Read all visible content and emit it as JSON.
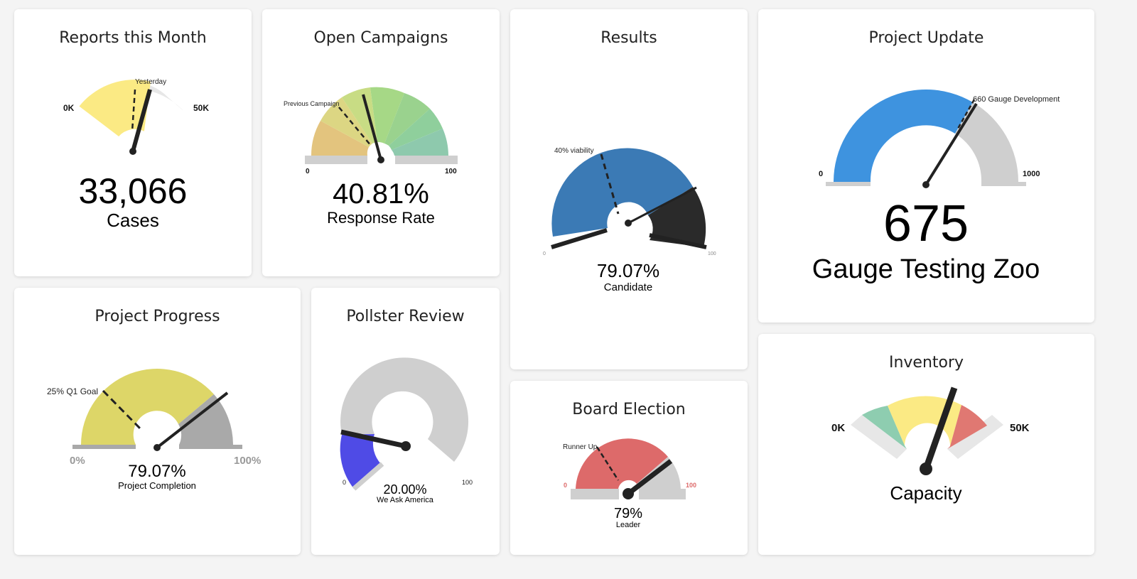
{
  "colors": {
    "yellow_soft": "#fbea84",
    "track_gray": "#e7e7e7",
    "needle": "#222222",
    "blue_fill": "#3e93df",
    "steel_blue": "#3b7ab5",
    "olive_yellow": "#ddd668",
    "gray_mid": "#a9a9a9",
    "violet_blue": "#4f4be6",
    "salmon_red": "#dd6a6a",
    "sage_green": "#8ecdb0",
    "coral": "#e07872"
  },
  "cards": {
    "reports": {
      "title": "Reports this Month",
      "value": "33,066",
      "caption": "Cases",
      "min_label": "0K",
      "max_label": "50K",
      "marker_label": "Yesterday"
    },
    "campaigns": {
      "title": "Open Campaigns",
      "value": "40.81%",
      "caption": "Response Rate",
      "min_label": "0",
      "max_label": "100",
      "marker_label": "Previous Campaign"
    },
    "results": {
      "title": "Results",
      "value": "79.07%",
      "caption": "Candidate",
      "min_label": "0",
      "max_label": "100",
      "marker_label": "40% viability"
    },
    "project_update": {
      "title": "Project Update",
      "value": "675",
      "caption": "Gauge Testing Zoo",
      "min_label": "0",
      "max_label": "1000",
      "marker_label": "660 Gauge Development"
    },
    "project_progress": {
      "title": "Project Progress",
      "value": "79.07%",
      "caption": "Project Completion",
      "min_label": "0%",
      "max_label": "100%",
      "marker_label": "25% Q1 Goal"
    },
    "pollster": {
      "title": "Pollster Review",
      "value": "20.00%",
      "caption": "We Ask America",
      "min_label": "0",
      "max_label": "100"
    },
    "board": {
      "title": "Board Election",
      "value": "79%",
      "caption": "Leader",
      "min_label": "0",
      "max_label": "100",
      "marker_label": "Runner Up"
    },
    "inventory": {
      "title": "Inventory",
      "caption": "Capacity",
      "min_label": "0K",
      "max_label": "50K"
    }
  }
}
